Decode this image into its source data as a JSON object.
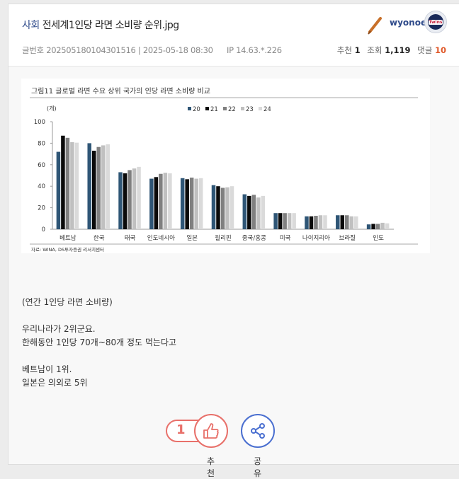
{
  "post": {
    "category": "사회",
    "title": "전세계1인당 라면 소비량 순위.jpg",
    "meta_label": "글번호",
    "post_id": "202505180104301516",
    "datetime": "2025-05-18 08:30",
    "ip": "IP 14.63.*.226",
    "author": "wyonoe",
    "recommend_label": "추천",
    "recommend_count": "1",
    "views_label": "조회",
    "views_count": "1,119",
    "comments_label": "댓글",
    "comments_count": "10",
    "accent_color": "#2e4a8a"
  },
  "chart_data": {
    "type": "bar",
    "title": "그림11 글로벌 라면 수요 상위 국가의 인당 라면 소비량 비교",
    "ylabel": "(개)",
    "ylim": [
      0,
      100
    ],
    "yticks": [
      0,
      20,
      40,
      60,
      80,
      100
    ],
    "legend_position": "top-right",
    "source": "자료: WINA, DS투자증권 리서치센터",
    "categories": [
      "베트남",
      "한국",
      "태국",
      "인도네시아",
      "일본",
      "필리핀",
      "중국/홍콩",
      "미국",
      "나이지리아",
      "브라질",
      "인도"
    ],
    "series": [
      {
        "name": "20",
        "color": "#2f5676",
        "values": [
          72,
          80,
          53,
          47,
          47.5,
          41,
          32.5,
          15,
          12,
          13,
          4.5
        ]
      },
      {
        "name": "21",
        "color": "#0a0a0a",
        "values": [
          87,
          73,
          52,
          48.5,
          46.5,
          40,
          31,
          15,
          12,
          13,
          5
        ]
      },
      {
        "name": "22",
        "color": "#808080",
        "values": [
          85,
          76.5,
          55,
          51.5,
          48,
          38.5,
          32,
          15,
          12.5,
          13,
          5
        ]
      },
      {
        "name": "23",
        "color": "#c0c0c0",
        "values": [
          81,
          78,
          56.5,
          52.5,
          47,
          39,
          29.5,
          15,
          13,
          12,
          6
        ]
      },
      {
        "name": "24",
        "color": "#dadada",
        "values": [
          80.5,
          79,
          58,
          52,
          47.5,
          40,
          31,
          15,
          13,
          12,
          5.5
        ]
      }
    ]
  },
  "content": {
    "lines": [
      "(연간 1인당 라면 소비량)",
      "",
      "우리나라가 2위군요.",
      "한해동안 1인당 70개~80개 정도 먹는다고",
      "",
      "베트남이 1위.",
      "일본은 의외로 5위"
    ]
  },
  "actions": {
    "like_count": "1",
    "like_label": "추천",
    "share_label": "공유",
    "like_color": "#e8706a",
    "share_color": "#4a6fd0"
  }
}
